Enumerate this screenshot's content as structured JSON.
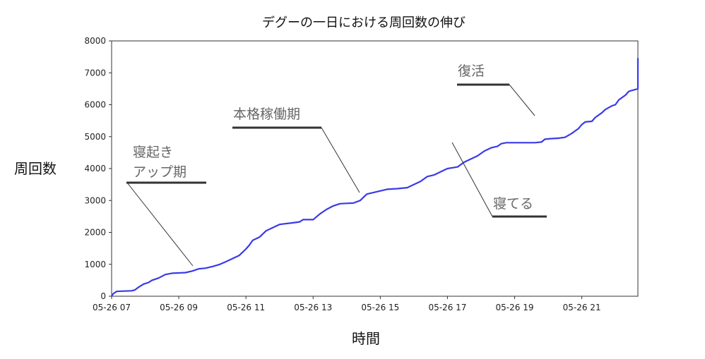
{
  "chart_data": {
    "type": "line",
    "title": "デグーの一日における周回数の伸び",
    "xlabel": "時間",
    "ylabel": "周回数",
    "x_tick_labels": [
      "05-26 07",
      "05-26 09",
      "05-26 11",
      "05-26 13",
      "05-26 15",
      "05-26 17",
      "05-26 19",
      "05-26 21"
    ],
    "x_tick_hours": [
      7,
      9,
      11,
      13,
      15,
      17,
      19,
      21
    ],
    "xlim_hours": [
      7.0,
      22.67
    ],
    "ylim": [
      0,
      8000
    ],
    "y_ticks": [
      0,
      1000,
      2000,
      3000,
      4000,
      5000,
      6000,
      7000,
      8000
    ],
    "grid": false,
    "line_color": "#3a3ae8",
    "series": [
      {
        "points": [
          [
            7.0,
            0
          ],
          [
            7.05,
            80
          ],
          [
            7.15,
            150
          ],
          [
            7.3,
            160
          ],
          [
            7.6,
            170
          ],
          [
            7.7,
            200
          ],
          [
            7.8,
            280
          ],
          [
            7.95,
            380
          ],
          [
            8.1,
            430
          ],
          [
            8.2,
            500
          ],
          [
            8.4,
            570
          ],
          [
            8.6,
            680
          ],
          [
            8.8,
            720
          ],
          [
            9.0,
            730
          ],
          [
            9.2,
            740
          ],
          [
            9.4,
            790
          ],
          [
            9.6,
            860
          ],
          [
            9.8,
            880
          ],
          [
            10.0,
            930
          ],
          [
            10.2,
            990
          ],
          [
            10.4,
            1080
          ],
          [
            10.6,
            1180
          ],
          [
            10.8,
            1280
          ],
          [
            11.0,
            1480
          ],
          [
            11.1,
            1600
          ],
          [
            11.2,
            1750
          ],
          [
            11.4,
            1850
          ],
          [
            11.6,
            2050
          ],
          [
            11.8,
            2150
          ],
          [
            12.0,
            2250
          ],
          [
            12.4,
            2300
          ],
          [
            12.6,
            2330
          ],
          [
            12.7,
            2400
          ],
          [
            13.0,
            2400
          ],
          [
            13.2,
            2580
          ],
          [
            13.4,
            2720
          ],
          [
            13.6,
            2830
          ],
          [
            13.8,
            2900
          ],
          [
            14.0,
            2910
          ],
          [
            14.2,
            2920
          ],
          [
            14.4,
            3000
          ],
          [
            14.6,
            3200
          ],
          [
            14.8,
            3250
          ],
          [
            15.0,
            3300
          ],
          [
            15.2,
            3350
          ],
          [
            15.5,
            3370
          ],
          [
            15.8,
            3400
          ],
          [
            16.0,
            3500
          ],
          [
            16.2,
            3600
          ],
          [
            16.4,
            3750
          ],
          [
            16.6,
            3800
          ],
          [
            16.8,
            3900
          ],
          [
            17.0,
            4000
          ],
          [
            17.3,
            4050
          ],
          [
            17.5,
            4200
          ],
          [
            17.7,
            4300
          ],
          [
            17.9,
            4400
          ],
          [
            18.1,
            4550
          ],
          [
            18.3,
            4650
          ],
          [
            18.5,
            4700
          ],
          [
            18.6,
            4780
          ],
          [
            18.75,
            4810
          ],
          [
            18.9,
            4810
          ],
          [
            19.2,
            4810
          ],
          [
            19.6,
            4810
          ],
          [
            19.8,
            4830
          ],
          [
            19.9,
            4920
          ],
          [
            20.1,
            4940
          ],
          [
            20.3,
            4950
          ],
          [
            20.5,
            4980
          ],
          [
            20.7,
            5100
          ],
          [
            20.9,
            5250
          ],
          [
            21.0,
            5380
          ],
          [
            21.1,
            5460
          ],
          [
            21.3,
            5480
          ],
          [
            21.4,
            5600
          ],
          [
            21.6,
            5750
          ],
          [
            21.7,
            5850
          ],
          [
            21.9,
            5970
          ],
          [
            22.0,
            6000
          ],
          [
            22.1,
            6150
          ],
          [
            22.3,
            6300
          ],
          [
            22.4,
            6420
          ],
          [
            22.6,
            6480
          ],
          [
            22.9,
            6500
          ],
          [
            23.1,
            6530
          ],
          [
            23.2,
            6600
          ],
          [
            23.5,
            6700
          ],
          [
            23.7,
            6800
          ],
          [
            23.9,
            6950
          ],
          [
            24.1,
            7050
          ],
          [
            24.4,
            7200
          ],
          [
            24.6,
            7300
          ],
          [
            24.8,
            7450
          ],
          [
            25.0,
            7460
          ],
          [
            25.2,
            7460
          ]
        ]
      }
    ],
    "annotations": [
      {
        "text": "寝起き\nアップ期"
      },
      {
        "text": "本格稼働期"
      },
      {
        "text": "復活"
      },
      {
        "text": "寝てる"
      }
    ]
  }
}
